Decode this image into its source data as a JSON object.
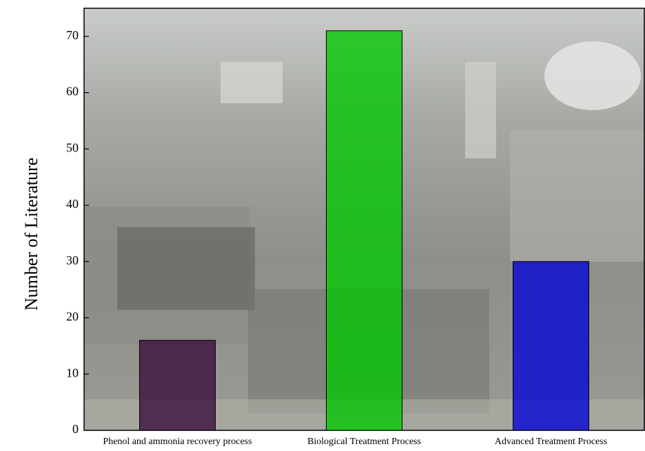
{
  "chart_data": {
    "type": "bar",
    "y_label": "Number of Literature",
    "categories": [
      "Phenol and ammonia recovery process",
      "Biological Treatment Process",
      "Advanced Treatment Process"
    ],
    "values": [
      16,
      71,
      30
    ],
    "colors": [
      "#3a0a3c",
      "#00c800",
      "#0000d8"
    ],
    "ylim": [
      0,
      75
    ],
    "yticks": [
      0,
      10,
      20,
      30,
      40,
      50,
      60,
      70
    ]
  }
}
